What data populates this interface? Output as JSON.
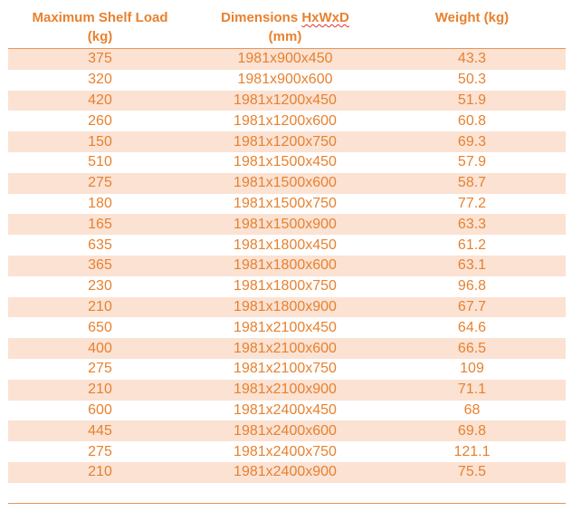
{
  "headers": {
    "load_line1": "Maximum Shelf Load",
    "load_line2": "(kg)",
    "dims_line1_prefix": "Dimensions ",
    "dims_line1_word": "HxWxD",
    "dims_line2": "(mm)",
    "weight": "Weight (kg)"
  },
  "rows": [
    {
      "load": "375",
      "dims": "1981x900x450",
      "weight": "43.3"
    },
    {
      "load": "320",
      "dims": "1981x900x600",
      "weight": "50.3"
    },
    {
      "load": "420",
      "dims": "1981x1200x450",
      "weight": "51.9"
    },
    {
      "load": "260",
      "dims": "1981x1200x600",
      "weight": "60.8"
    },
    {
      "load": "150",
      "dims": "1981x1200x750",
      "weight": "69.3"
    },
    {
      "load": "510",
      "dims": "1981x1500x450",
      "weight": "57.9"
    },
    {
      "load": "275",
      "dims": "1981x1500x600",
      "weight": "58.7"
    },
    {
      "load": "180",
      "dims": "1981x1500x750",
      "weight": "77.2"
    },
    {
      "load": "165",
      "dims": "1981x1500x900",
      "weight": "63.3"
    },
    {
      "load": "635",
      "dims": "1981x1800x450",
      "weight": "61.2"
    },
    {
      "load": "365",
      "dims": "1981x1800x600",
      "weight": "63.1"
    },
    {
      "load": "230",
      "dims": "1981x1800x750",
      "weight": "96.8"
    },
    {
      "load": "210",
      "dims": "1981x1800x900",
      "weight": "67.7"
    },
    {
      "load": "650",
      "dims": "1981x2100x450",
      "weight": "64.6"
    },
    {
      "load": "400",
      "dims": "1981x2100x600",
      "weight": "66.5"
    },
    {
      "load": "275",
      "dims": "1981x2100x750",
      "weight": "109"
    },
    {
      "load": "210",
      "dims": "1981x2100x900",
      "weight": "71.1"
    },
    {
      "load": "600",
      "dims": "1981x2400x450",
      "weight": "68"
    },
    {
      "load": "445",
      "dims": "1981x2400x600",
      "weight": "69.8"
    },
    {
      "load": "275",
      "dims": "1981x2400x750",
      "weight": "121.1"
    },
    {
      "load": "210",
      "dims": "1981x2400x900",
      "weight": "75.5"
    }
  ],
  "colors": {
    "text": "#e8812e",
    "band": "#fbe2d3",
    "rule": "#e8955c"
  }
}
